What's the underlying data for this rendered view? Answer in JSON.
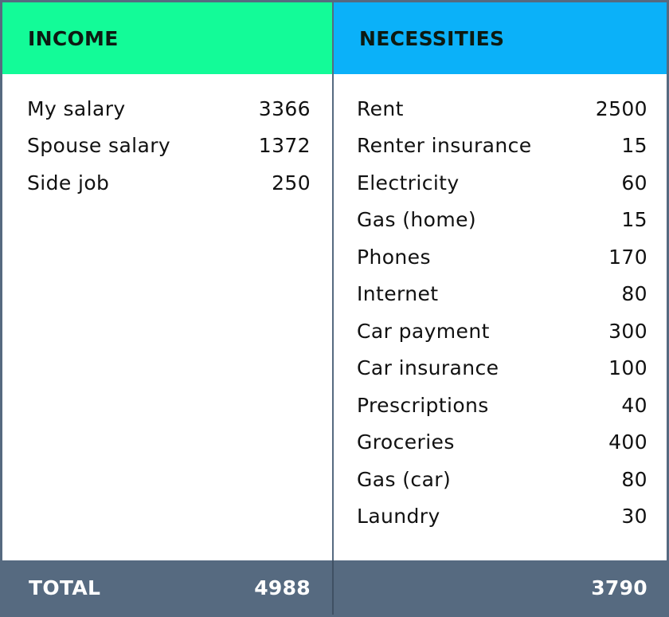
{
  "colors": {
    "income_header": "#13fb98",
    "necessities_header": "#0bb1f9",
    "footer": "#566a80",
    "border": "#566a80"
  },
  "income": {
    "title": "INCOME",
    "items": [
      {
        "label": "My salary",
        "amount": "3366"
      },
      {
        "label": "Spouse salary",
        "amount": "1372"
      },
      {
        "label": "Side job",
        "amount": "250"
      }
    ],
    "total_label": "TOTAL",
    "total": "4988"
  },
  "necessities": {
    "title": "NECESSITIES",
    "items": [
      {
        "label": "Rent",
        "amount": "2500"
      },
      {
        "label": "Renter insurance",
        "amount": "15"
      },
      {
        "label": "Electricity",
        "amount": "60"
      },
      {
        "label": "Gas (home)",
        "amount": "15"
      },
      {
        "label": "Phones",
        "amount": "170"
      },
      {
        "label": "Internet",
        "amount": "80"
      },
      {
        "label": "Car payment",
        "amount": "300"
      },
      {
        "label": "Car insurance",
        "amount": "100"
      },
      {
        "label": "Prescriptions",
        "amount": "40"
      },
      {
        "label": "Groceries",
        "amount": "400"
      },
      {
        "label": "Gas (car)",
        "amount": "80"
      },
      {
        "label": "Laundry",
        "amount": "30"
      }
    ],
    "total": "3790"
  }
}
